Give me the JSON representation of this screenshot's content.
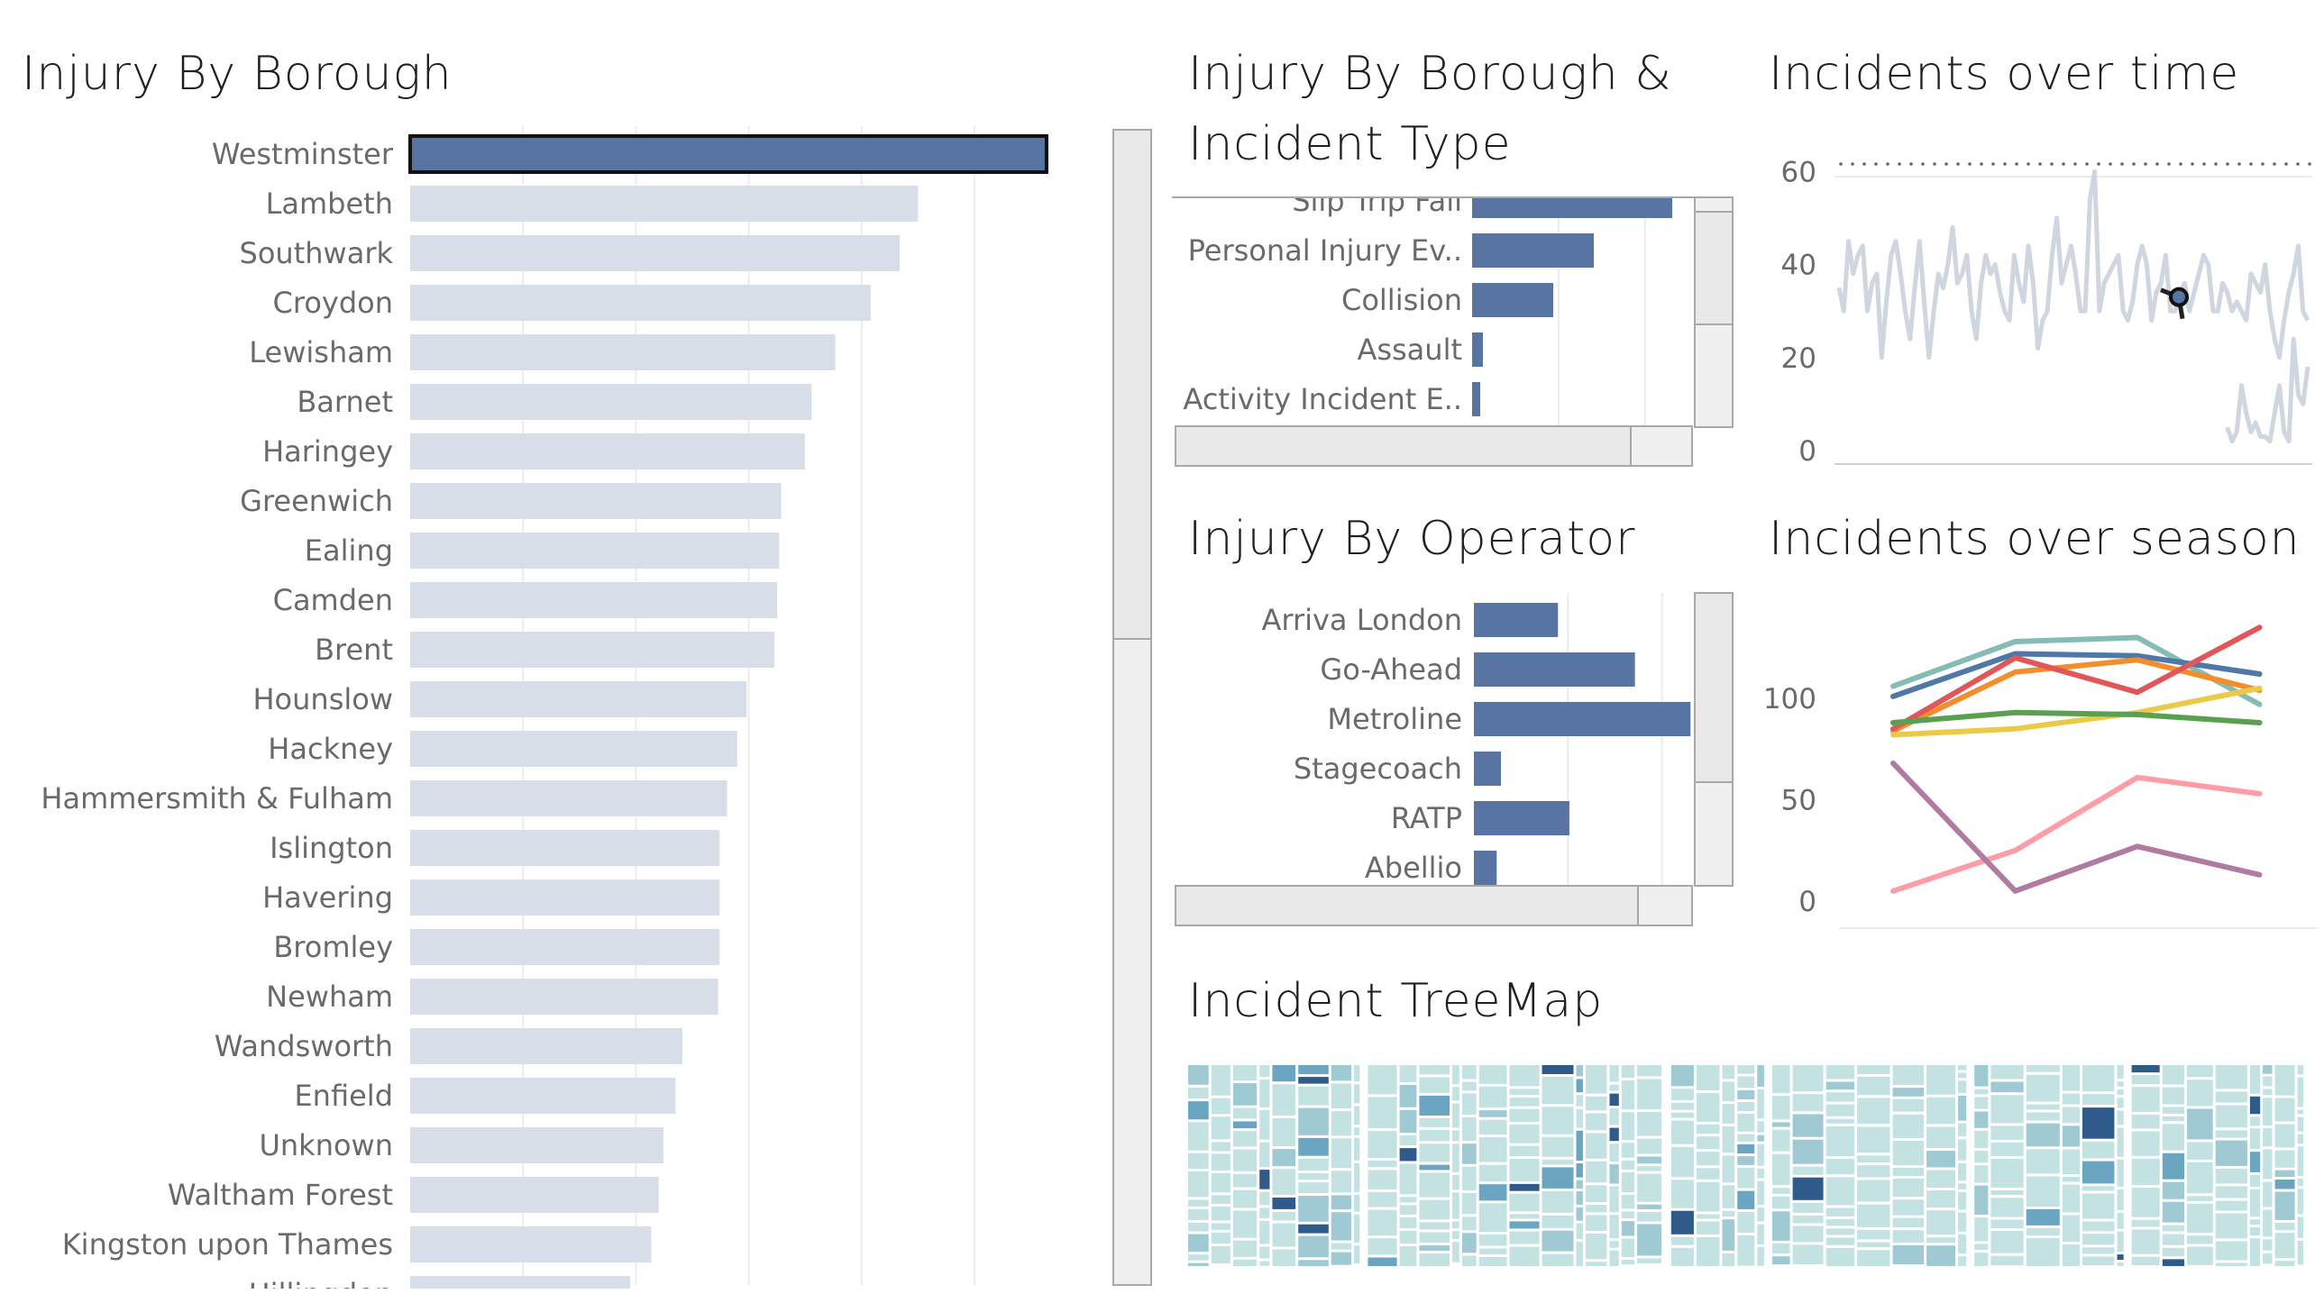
{
  "titles": {
    "borough": "Injury By Borough",
    "type_line1": "Injury By Borough &",
    "type_line2": "Incident Type",
    "time": "Incidents over time",
    "operator": "Injury By Operator",
    "season": "Incidents over season",
    "treemap": "Incident TreeMap"
  },
  "colors": {
    "highlight": "#5874a2",
    "muted": "#d8dee7",
    "grid": "#ececec",
    "time_line": "#cfd6df",
    "treemap_light": "#c5e2e3",
    "treemap_mid": "#6aa6c2",
    "treemap_dark": "#2f5b8a"
  },
  "chart_data": [
    {
      "type": "bar",
      "id": "injury-by-borough",
      "title": "Injury By Borough",
      "orientation": "horizontal",
      "categories": [
        "Westminster",
        "Lambeth",
        "Southwark",
        "Croydon",
        "Lewisham",
        "Barnet",
        "Haringey",
        "Greenwich",
        "Ealing",
        "Camden",
        "Brent",
        "Hounslow",
        "Hackney",
        "Hammersmith & Fulham",
        "Islington",
        "Havering",
        "Bromley",
        "Newham",
        "Wandsworth",
        "Enfield",
        "Unknown",
        "Waltham Forest",
        "Kingston upon Thames",
        "Hillingdon"
      ],
      "values": [
        940,
        750,
        723,
        680,
        628,
        593,
        583,
        548,
        545,
        542,
        538,
        497,
        483,
        468,
        457,
        457,
        457,
        455,
        402,
        392,
        374,
        367,
        356,
        325
      ],
      "highlighted": [
        "Westminster"
      ],
      "xlim": [
        0,
        1000
      ],
      "grid": true,
      "partially_visible": [
        "Hillingdon"
      ]
    },
    {
      "type": "bar",
      "id": "injury-by-borough-and-incident-type",
      "title": "Injury By Borough & Incident Type",
      "orientation": "horizontal",
      "categories": [
        "Slip Trip Fall",
        "Personal Injury Ev..",
        "Collision",
        "Assault",
        "Activity Incident E.."
      ],
      "values": [
        74,
        45,
        30,
        4,
        3
      ],
      "xlim": [
        0,
        80
      ],
      "grid": true,
      "partially_visible": [
        "Slip Trip Fall"
      ]
    },
    {
      "type": "line",
      "id": "incidents-over-time",
      "title": "Incidents over time",
      "y_ticks": [
        "0",
        "20",
        "40",
        "60"
      ],
      "ylim": [
        0,
        62
      ],
      "grid": true,
      "series": [
        {
          "values": [
            35,
            30,
            45,
            38,
            42,
            44,
            30,
            36,
            38,
            20,
            32,
            42,
            45,
            38,
            30,
            24,
            35,
            45,
            32,
            20,
            30,
            38,
            35,
            40,
            48,
            36,
            38,
            42,
            30,
            24,
            36,
            42,
            38,
            40,
            34,
            30,
            28,
            42,
            36,
            32,
            44,
            36,
            22,
            28,
            30,
            42,
            50,
            36,
            40,
            44,
            38,
            30,
            30,
            54,
            60,
            30,
            36,
            38,
            40,
            42,
            30,
            28,
            32,
            40,
            44,
            40,
            28,
            34,
            36,
            42,
            30,
            30,
            34,
            36,
            30,
            34,
            38,
            42,
            40,
            30,
            30,
            36,
            34,
            30,
            32,
            30,
            28,
            38,
            36,
            34,
            40,
            30,
            24,
            20,
            28,
            34,
            38,
            44,
            30,
            28
          ]
        },
        {
          "values": [
            null,
            null,
            null,
            null,
            null,
            null,
            null,
            null,
            null,
            null,
            null,
            null,
            null,
            null,
            null,
            null,
            null,
            null,
            null,
            null,
            null,
            null,
            null,
            null,
            null,
            null,
            null,
            null,
            null,
            null,
            null,
            null,
            null,
            null,
            null,
            null,
            null,
            null,
            null,
            null,
            null,
            null,
            null,
            null,
            null,
            null,
            null,
            null,
            null,
            null,
            null,
            null,
            null,
            null,
            null,
            null,
            null,
            null,
            null,
            null,
            null,
            null,
            null,
            null,
            null,
            null,
            null,
            null,
            null,
            null,
            null,
            null,
            null,
            null,
            null,
            null,
            null,
            null,
            null,
            null,
            null,
            null,
            5,
            2,
            4,
            14,
            8,
            4,
            6,
            3,
            3,
            2,
            8,
            14,
            4,
            2,
            24,
            12,
            10,
            18
          ]
        }
      ],
      "highlight_point": {
        "value": 33
      }
    },
    {
      "type": "bar",
      "id": "injury-by-operator",
      "title": "Injury By Operator",
      "orientation": "horizontal",
      "categories": [
        "Arriva London",
        "Go-Ahead",
        "Metroline",
        "Stagecoach",
        "RATP",
        "Abellio"
      ],
      "values": [
        59,
        113,
        152,
        19,
        67,
        16
      ],
      "xlim": [
        0,
        155
      ],
      "grid": true
    },
    {
      "type": "line",
      "id": "incidents-over-season",
      "title": "Incidents over season",
      "y_ticks": [
        "0",
        "50",
        "100"
      ],
      "ylim": [
        0,
        140
      ],
      "grid": true,
      "x": [
        1,
        2,
        3,
        4
      ],
      "series": [
        {
          "color": "#86bcb6",
          "values": [
            106,
            128,
            130,
            97
          ]
        },
        {
          "color": "#4e79a7",
          "values": [
            101,
            122,
            121,
            112
          ]
        },
        {
          "color": "#f28e2b",
          "values": [
            84,
            113,
            119,
            104
          ]
        },
        {
          "color": "#e15759",
          "values": [
            85,
            120,
            103,
            135
          ]
        },
        {
          "color": "#edc948",
          "values": [
            82,
            85,
            93,
            105
          ]
        },
        {
          "color": "#59a14f",
          "values": [
            88,
            93,
            92,
            88
          ]
        },
        {
          "color": "#ff9da7",
          "values": [
            5,
            25,
            61,
            53
          ]
        },
        {
          "color": "#b07aa1",
          "values": [
            68,
            5,
            27,
            13
          ]
        }
      ]
    }
  ],
  "treemap": {
    "title": "Incident TreeMap",
    "groups": [
      {
        "weight": 0.16,
        "dark_cells": 9
      },
      {
        "weight": 0.27,
        "dark_cells": 14
      },
      {
        "weight": 0.09,
        "dark_cells": 6
      },
      {
        "weight": 0.18,
        "dark_cells": 2
      },
      {
        "weight": 0.14,
        "dark_cells": 7
      },
      {
        "weight": 0.16,
        "dark_cells": 8
      }
    ]
  }
}
